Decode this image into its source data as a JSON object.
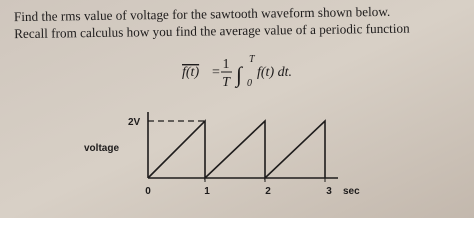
{
  "problem": {
    "lines": [
      "Find the rms value of voltage for the sawtooth waveform shown below.",
      "Recall from calculus how you find the average value of a periodic function"
    ]
  },
  "formula": {
    "lhs": "f(t)",
    "equals": "=",
    "numerator": "1",
    "denominator": "T",
    "integral": "∫",
    "lower": "0",
    "upper": "T",
    "integrand": "f(t) dt."
  },
  "figure": {
    "y_label": "voltage",
    "y_tick": "2V",
    "x_ticks": [
      "0",
      "1",
      "2",
      "3"
    ],
    "x_unit": "sec"
  }
}
